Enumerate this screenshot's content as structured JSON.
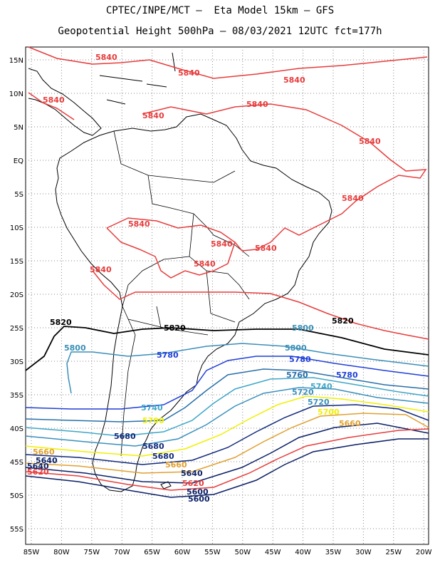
{
  "title_line1": "CPTEC/INPE/MCT –  Eta Model 15km – GFS",
  "title_line2": "Geopotential Height 500hPa – 08/03/2021 12UTC fct=177h",
  "axes": {
    "lat_ticks": [
      "15N",
      "10N",
      "5N",
      "EQ",
      "5S",
      "10S",
      "15S",
      "20S",
      "25S",
      "30S",
      "35S",
      "40S",
      "45S",
      "50S",
      "55S"
    ],
    "lon_ticks": [
      "85W",
      "80W",
      "75W",
      "70W",
      "65W",
      "60W",
      "55W",
      "50W",
      "45W",
      "40W",
      "35W",
      "30W",
      "25W",
      "20W"
    ]
  },
  "contour_colors": {
    "5840": "#e83c3c",
    "5820": "#000000",
    "5800": "#3a8fb7",
    "5780": "#1f3fd8",
    "5760": "#2a6fa8",
    "5740": "#3fa6c8",
    "5720": "#3a90bd",
    "5700": "#f0f000",
    "5680": "#102a7a",
    "5660": "#e0a030",
    "5640": "#0a1f66",
    "5620": "#e83c3c",
    "5600": "#0a1f66"
  },
  "contour_labels": [
    {
      "text": "5840",
      "level": "5840"
    },
    {
      "text": "5840",
      "level": "5840"
    },
    {
      "text": "5840",
      "level": "5840"
    },
    {
      "text": "5840",
      "level": "5840"
    },
    {
      "text": "5840",
      "level": "5840"
    },
    {
      "text": "5840",
      "level": "5840"
    },
    {
      "text": "5840",
      "level": "5840"
    },
    {
      "text": "5840",
      "level": "5840"
    },
    {
      "text": "5840",
      "level": "5840"
    },
    {
      "text": "5840",
      "level": "5840"
    },
    {
      "text": "5840",
      "level": "5840"
    },
    {
      "text": "5840",
      "level": "5840"
    },
    {
      "text": "5840",
      "level": "5840"
    },
    {
      "text": "5820",
      "level": "5820"
    },
    {
      "text": "5820",
      "level": "5820"
    },
    {
      "text": "5820",
      "level": "5820"
    },
    {
      "text": "5800",
      "level": "5800"
    },
    {
      "text": "5800",
      "level": "5800"
    },
    {
      "text": "5800",
      "level": "5800"
    },
    {
      "text": "5780",
      "level": "5780"
    },
    {
      "text": "5780",
      "level": "5780"
    },
    {
      "text": "5780",
      "level": "5780"
    },
    {
      "text": "5760",
      "level": "5760"
    },
    {
      "text": "5740",
      "level": "5740"
    },
    {
      "text": "5740",
      "level": "5740"
    },
    {
      "text": "5720",
      "level": "5720"
    },
    {
      "text": "5720",
      "level": "5720"
    },
    {
      "text": "5700",
      "level": "5700"
    },
    {
      "text": "5700",
      "level": "5700"
    },
    {
      "text": "5680",
      "level": "5680"
    },
    {
      "text": "5680",
      "level": "5680"
    },
    {
      "text": "5680",
      "level": "5680"
    },
    {
      "text": "5660",
      "level": "5660"
    },
    {
      "text": "5660",
      "level": "5660"
    },
    {
      "text": "5660",
      "level": "5660"
    },
    {
      "text": "5640",
      "level": "5640"
    },
    {
      "text": "5640",
      "level": "5640"
    },
    {
      "text": "5640",
      "level": "5640"
    },
    {
      "text": "5620",
      "level": "5620"
    },
    {
      "text": "5620",
      "level": "5620"
    },
    {
      "text": "5600",
      "level": "5600"
    },
    {
      "text": "5600",
      "level": "5600"
    }
  ]
}
